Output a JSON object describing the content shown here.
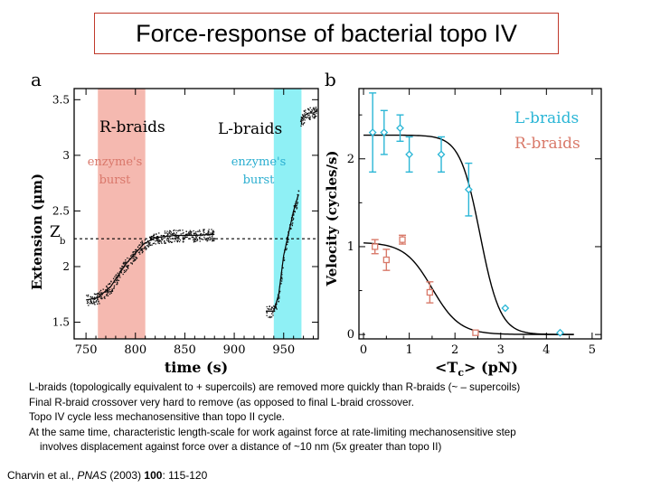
{
  "slide": {
    "title": "Force-response of bacterial topo IV",
    "caption_lines": [
      "L-braids (topologically equivalent to  + supercoils) are removed more quickly than R-braids (~ – supercoils)",
      "Final R-braid crossover very hard to remove (as opposed to final L-braid crossover.",
      "Topo IV cycle less mechanosensitive than topo II cycle.",
      "At the same time, characteristic length-scale for work against force at rate-limiting mechanosensitive step",
      "involves displacement against force over a distance of ~10 nm (5x greater than topo II)"
    ],
    "citation": {
      "authors": "Charvin et al., ",
      "journal": "PNAS",
      "year": " (2003) ",
      "volume": "100",
      "pages": ": 115-120"
    }
  },
  "colors": {
    "title_border": "#c0392b",
    "r_braid": "#f5b9b0",
    "l_braid": "#8ff0f5",
    "cyan": "#2bb6d6",
    "salmon": "#d97a6a"
  },
  "chart_data": [
    {
      "type": "scatter",
      "panel_label": "a",
      "xlabel": "time (s)",
      "ylabel": "Extension (μm)",
      "xticks": [
        750,
        800,
        850,
        900,
        950
      ],
      "yticks": [
        1.5,
        2,
        2.5,
        3,
        3.5
      ],
      "xlim": [
        738,
        985
      ],
      "ylim": [
        1.35,
        3.6
      ],
      "zb_label": "Z",
      "zb_sub": "b",
      "zb_value": 2.25,
      "regions": [
        {
          "label": "R-braids",
          "sublabel_1": "enzyme's",
          "sublabel_2": "burst",
          "x_range": [
            762,
            810
          ]
        },
        {
          "label": "L-braids",
          "sublabel_1": "enzyme's",
          "sublabel_2": "burst",
          "x_range": [
            940,
            968
          ]
        }
      ],
      "trace_segments": [
        {
          "x": [
            750,
            762,
            775,
            790,
            800,
            808,
            820,
            840,
            860,
            880
          ],
          "y": [
            1.7,
            1.72,
            1.82,
            2.02,
            2.12,
            2.2,
            2.26,
            2.28,
            2.28,
            2.29
          ]
        },
        {
          "x": [
            932,
            940,
            945,
            950,
            955,
            960,
            965
          ],
          "y": [
            1.6,
            1.6,
            1.75,
            2.1,
            2.3,
            2.5,
            2.65
          ]
        },
        {
          "x": [
            967,
            970,
            975,
            980,
            984
          ],
          "y": [
            3.3,
            3.35,
            3.38,
            3.38,
            3.4
          ]
        }
      ]
    },
    {
      "type": "scatter",
      "panel_label": "b",
      "xlabel": "<T",
      "xlabel_sub": "c",
      "xlabel_unit": "> (pN)",
      "ylabel": "Velocity (cycles/s)",
      "xticks": [
        0,
        1,
        2,
        3,
        4,
        5
      ],
      "yticks": [
        0,
        1,
        2
      ],
      "xlim": [
        -0.1,
        5.2
      ],
      "ylim": [
        -0.05,
        2.8
      ],
      "series": [
        {
          "name": "L-braids",
          "x": [
            0.2,
            0.45,
            0.8,
            1.0,
            1.7,
            2.3,
            3.1,
            4.3
          ],
          "y": [
            2.3,
            2.3,
            2.35,
            2.05,
            2.05,
            1.65,
            0.3,
            0.02
          ],
          "err": [
            0.45,
            0.25,
            0.15,
            0.2,
            0.2,
            0.3,
            0.0,
            0.0
          ],
          "marker": "diamond",
          "fit": {
            "vmax": 2.27,
            "x_half": 2.55,
            "width": 0.22
          }
        },
        {
          "name": "R-braids",
          "x": [
            0.25,
            0.5,
            0.85,
            1.45,
            2.45
          ],
          "y": [
            1.0,
            0.85,
            1.08,
            0.48,
            0.02
          ],
          "err": [
            0.08,
            0.12,
            0.05,
            0.12,
            0.0
          ],
          "marker": "square",
          "fit": {
            "vmax": 1.05,
            "x_half": 1.5,
            "width": 0.3
          }
        }
      ]
    }
  ]
}
